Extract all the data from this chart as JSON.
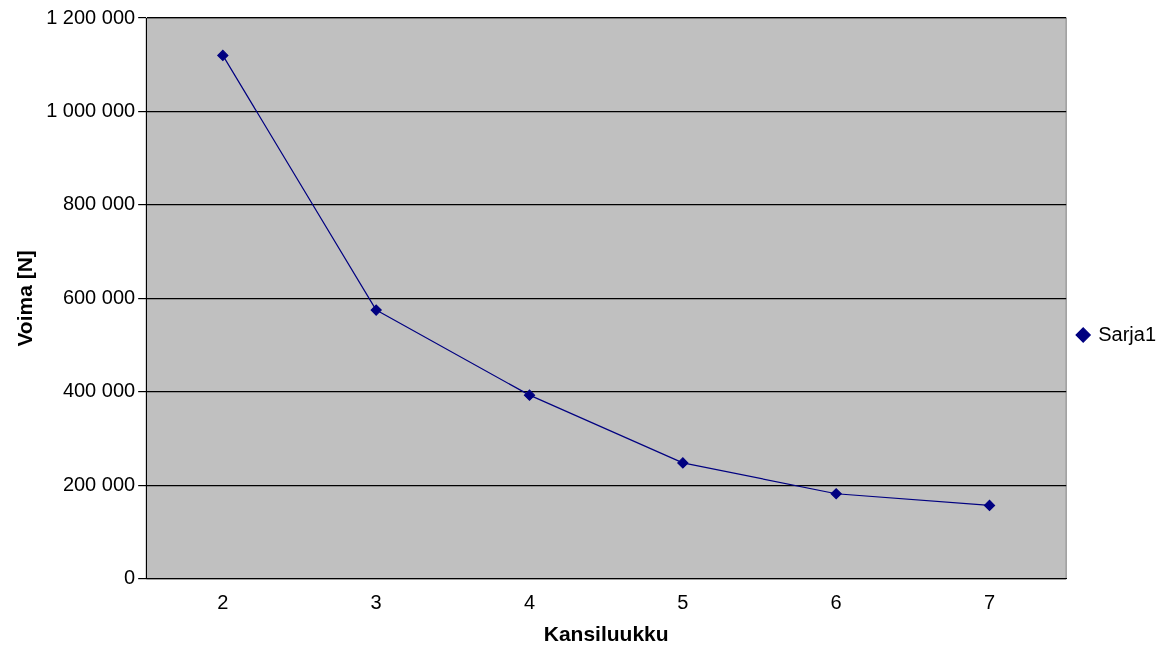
{
  "chart_data": {
    "type": "line",
    "xlabel": "Kansiluukku",
    "ylabel": "Voima [N]",
    "categories": [
      "2",
      "3",
      "4",
      "5",
      "6",
      "7"
    ],
    "series": [
      {
        "name": "Sarja1",
        "color": "#000080",
        "values": [
          1120000,
          575000,
          393000,
          248000,
          182000,
          157000
        ]
      }
    ],
    "ylim": [
      0,
      1200000
    ],
    "yticks": [
      0,
      {
        "value": 200000,
        "label": "200 000"
      },
      {
        "value": 400000,
        "label": "400 000"
      },
      {
        "value": 600000,
        "label": "600 000"
      },
      {
        "value": 800000,
        "label": "800 000"
      },
      {
        "value": 1000000,
        "label": "1 000 000"
      },
      {
        "value": 1200000,
        "label": "1 200 000"
      }
    ],
    "grid": "y",
    "legend": "right",
    "marker": "diamond",
    "line_style": "solid"
  }
}
